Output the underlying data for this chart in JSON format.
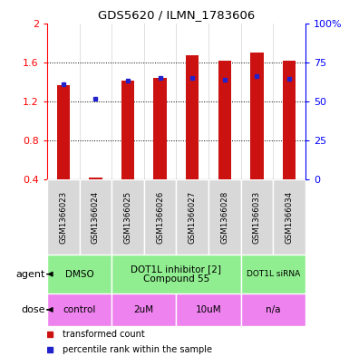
{
  "title": "GDS5620 / ILMN_1783606",
  "samples": [
    "GSM1366023",
    "GSM1366024",
    "GSM1366025",
    "GSM1366026",
    "GSM1366027",
    "GSM1366028",
    "GSM1366033",
    "GSM1366034"
  ],
  "red_values": [
    1.37,
    0.42,
    1.41,
    1.44,
    1.67,
    1.62,
    1.7,
    1.62
  ],
  "blue_values": [
    1.38,
    1.23,
    1.41,
    1.44,
    1.44,
    1.42,
    1.46,
    1.43
  ],
  "ylim": [
    0.4,
    2.0
  ],
  "yticks_left": [
    0.4,
    0.8,
    1.2,
    1.6,
    2.0
  ],
  "ytick_labels_left": [
    "0.4",
    "0.8",
    "1.2",
    "1.6",
    "2"
  ],
  "yticks_right_vals": [
    0,
    25,
    50,
    75,
    100
  ],
  "ytick_labels_right": [
    "0",
    "25",
    "50",
    "75",
    "100%"
  ],
  "agent_groups": [
    {
      "label": "DMSO",
      "start": 0,
      "end": 2
    },
    {
      "label": "DOT1L inhibitor [2]\nCompound 55",
      "start": 2,
      "end": 6
    },
    {
      "label": "DOT1L siRNA",
      "start": 6,
      "end": 8
    }
  ],
  "dose_groups": [
    {
      "label": "control",
      "start": 0,
      "end": 2
    },
    {
      "label": "2uM",
      "start": 2,
      "end": 4
    },
    {
      "label": "10uM",
      "start": 4,
      "end": 6
    },
    {
      "label": "n/a",
      "start": 6,
      "end": 8
    }
  ],
  "legend_red": "transformed count",
  "legend_blue": "percentile rank within the sample",
  "bar_color": "#cc1111",
  "dot_color": "#2222cc",
  "sample_bg": "#d8d8d8",
  "agent_color": "#90ee90",
  "dose_color": "#ee82ee",
  "agent_label": "agent",
  "dose_label": "dose"
}
